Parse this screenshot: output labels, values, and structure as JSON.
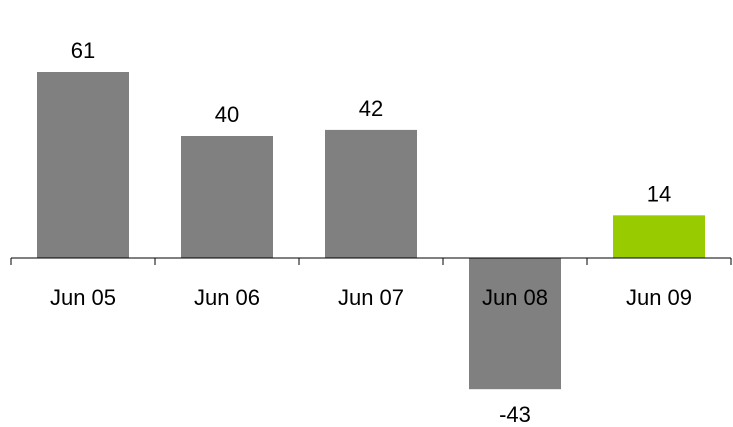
{
  "chart_data": {
    "type": "bar",
    "categories": [
      "Jun 05",
      "Jun 06",
      "Jun 07",
      "Jun 08",
      "Jun 09"
    ],
    "values": [
      61,
      40,
      42,
      -43,
      14
    ],
    "value_labels": [
      "61",
      "40",
      "42",
      "-43",
      "14"
    ],
    "bar_colors": [
      "#808080",
      "#808080",
      "#808080",
      "#808080",
      "#99cc00"
    ],
    "title": "",
    "xlabel": "",
    "ylabel": "",
    "grid": false,
    "legend": "none"
  }
}
